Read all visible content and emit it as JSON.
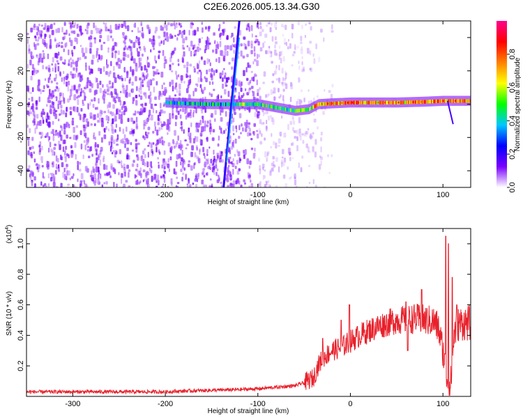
{
  "figure_title": "C2E6.2026.005.13.34.G30",
  "chart_data": [
    {
      "type": "heatmap",
      "xlabel": "Height of straight line (km)",
      "ylabel": "Frequency (Hz)",
      "xlim": [
        -350,
        130
      ],
      "ylim": [
        -50,
        50
      ],
      "xticks": [
        -300,
        -200,
        -100,
        0,
        100
      ],
      "xtick_labels": [
        "-300",
        "-200",
        "-100",
        "0",
        "100"
      ],
      "yticks": [
        -40,
        -20,
        0,
        20,
        40
      ],
      "ytick_labels": [
        "-40",
        "-20",
        "0",
        "20",
        "40"
      ],
      "colorbar": {
        "label": "Normalized spectral amplitude",
        "range": [
          0,
          1
        ],
        "ticks": [
          0.0,
          0.2,
          0.4,
          0.6,
          0.8
        ],
        "tick_labels": [
          "0.0",
          "0.2",
          "0.4",
          "0.6",
          "0.8"
        ],
        "colormap": [
          "#ffffff",
          "#7b00ff",
          "#0000ff",
          "#00c8ff",
          "#00ff00",
          "#ffff00",
          "#ff8000",
          "#ff0000",
          "#ff0090"
        ]
      },
      "features": {
        "noise_region_x": [
          -350,
          -60
        ],
        "signal_band_freq_hz": [
          [
            -200,
            1
          ],
          [
            -150,
            0
          ],
          [
            -100,
            0
          ],
          [
            -80,
            -2
          ],
          [
            -60,
            -4
          ],
          [
            -45,
            -3
          ],
          [
            -35,
            0
          ],
          [
            -20,
            0.5
          ],
          [
            0,
            1
          ],
          [
            20,
            1
          ],
          [
            50,
            1
          ],
          [
            80,
            1.5
          ],
          [
            100,
            2
          ],
          [
            130,
            2
          ]
        ],
        "diagonal_streak": [
          [
            -137,
            -50
          ],
          [
            -120,
            50
          ]
        ]
      },
      "grid": false
    },
    {
      "type": "line",
      "xlabel": "Height of straight line (km)",
      "ylabel": "SNR (10 * v/v)",
      "y_multiplier_label": "(x10",
      "y_multiplier_exponent": "4",
      "y_multiplier_close": ")",
      "xlim": [
        -350,
        130
      ],
      "ylim": [
        0,
        1.1
      ],
      "xticks": [
        -300,
        -200,
        -100,
        0,
        100
      ],
      "xtick_labels": [
        "-300",
        "-200",
        "-100",
        "0",
        "100"
      ],
      "yticks": [
        0.2,
        0.4,
        0.6,
        0.8,
        1.0
      ],
      "ytick_labels": [
        "0.2",
        "0.4",
        "0.6",
        "0.8",
        "1.0"
      ],
      "series": [
        {
          "color": "#e8202a",
          "points": [
            [
              -350,
              0.03
            ],
            [
              -300,
              0.03
            ],
            [
              -250,
              0.03
            ],
            [
              -200,
              0.03
            ],
            [
              -180,
              0.035
            ],
            [
              -150,
              0.04
            ],
            [
              -120,
              0.045
            ],
            [
              -100,
              0.05
            ],
            [
              -80,
              0.06
            ],
            [
              -60,
              0.07
            ],
            [
              -50,
              0.09
            ],
            [
              -40,
              0.12
            ],
            [
              -35,
              0.2
            ],
            [
              -30,
              0.25
            ],
            [
              -20,
              0.3
            ],
            [
              -10,
              0.32
            ],
            [
              0,
              0.36
            ],
            [
              10,
              0.4
            ],
            [
              20,
              0.43
            ],
            [
              30,
              0.46
            ],
            [
              40,
              0.48
            ],
            [
              50,
              0.5
            ],
            [
              60,
              0.5
            ],
            [
              70,
              0.51
            ],
            [
              80,
              0.5
            ],
            [
              90,
              0.49
            ],
            [
              95,
              0.45
            ],
            [
              100,
              0.3
            ],
            [
              105,
              0.1
            ],
            [
              108,
              0.05
            ],
            [
              112,
              0.4
            ],
            [
              115,
              0.47
            ],
            [
              120,
              0.48
            ],
            [
              130,
              0.48
            ]
          ],
          "spikes": [
            [
              -1,
              0.6
            ],
            [
              -30,
              0.38
            ],
            [
              -10,
              0.5
            ],
            [
              60,
              0.62
            ],
            [
              77,
              0.7
            ],
            [
              62,
              0.3
            ],
            [
              103,
              1.05
            ],
            [
              106,
              1.0
            ],
            [
              110,
              0.78
            ],
            [
              115,
              0.6
            ]
          ]
        }
      ],
      "grid": false
    }
  ]
}
